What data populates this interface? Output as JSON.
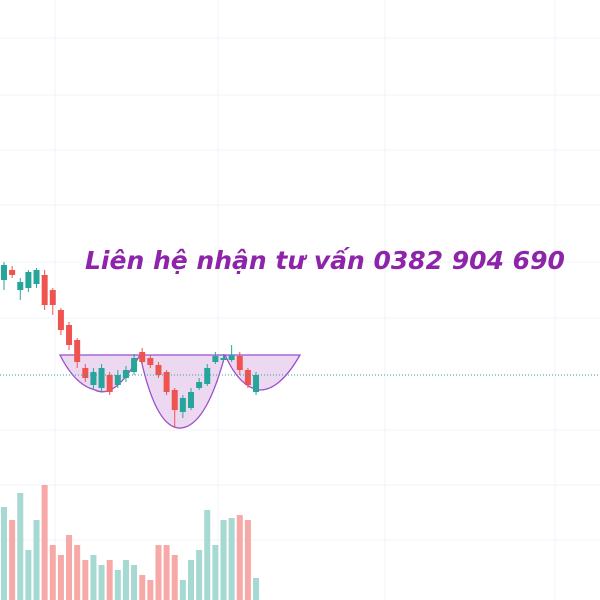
{
  "chart_data": {
    "type": "candlestick",
    "annotation": "Liên hệ nhận tư vấn 0382 904 690",
    "ylim": [
      0,
      600
    ],
    "up_color": "#26a69a",
    "down_color": "#ef5350",
    "up_volume_color": "#a5d9d2",
    "down_volume_color": "#f7a9a7",
    "open": [
      320,
      330,
      310,
      312,
      316,
      325,
      310,
      290,
      275,
      260,
      232,
      215,
      212,
      225,
      215,
      222,
      228,
      248,
      242,
      235,
      228,
      210,
      188,
      192,
      212,
      216,
      238,
      240,
      240,
      244,
      230,
      208
    ],
    "high": [
      338,
      334,
      322,
      330,
      332,
      330,
      312,
      292,
      278,
      262,
      236,
      232,
      236,
      228,
      230,
      234,
      246,
      252,
      245,
      238,
      230,
      212,
      205,
      212,
      222,
      236,
      248,
      246,
      255,
      248,
      232,
      228
    ],
    "low": [
      310,
      322,
      300,
      308,
      312,
      290,
      285,
      265,
      250,
      232,
      218,
      210,
      208,
      205,
      212,
      218,
      225,
      235,
      232,
      222,
      205,
      172,
      182,
      190,
      210,
      214,
      236,
      238,
      238,
      225,
      212,
      205
    ],
    "close": [
      335,
      325,
      318,
      328,
      330,
      295,
      295,
      270,
      255,
      238,
      222,
      228,
      232,
      208,
      225,
      230,
      242,
      238,
      235,
      225,
      208,
      190,
      202,
      208,
      218,
      232,
      244,
      242,
      245,
      230,
      215,
      225
    ],
    "volume": [
      93,
      80,
      107,
      50,
      80,
      115,
      55,
      45,
      65,
      55,
      40,
      45,
      35,
      40,
      30,
      40,
      35,
      25,
      20,
      55,
      55,
      45,
      20,
      40,
      50,
      90,
      55,
      80,
      82,
      85,
      80,
      22
    ]
  }
}
